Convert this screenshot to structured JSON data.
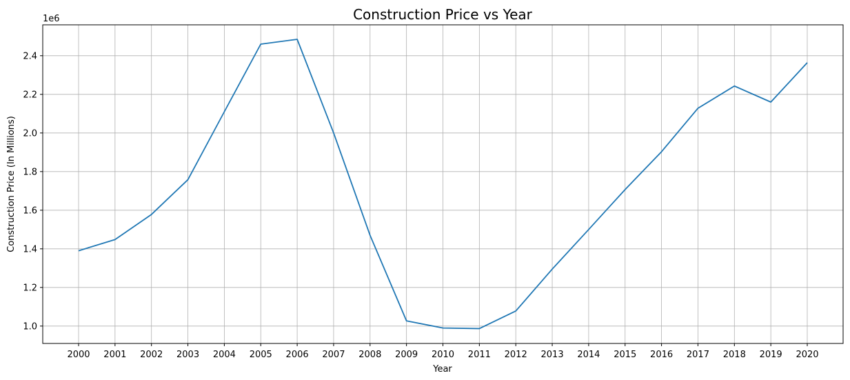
{
  "chart_data": {
    "type": "line",
    "title": "Construction Price vs Year",
    "xlabel": "Year",
    "ylabel": "Construction Price (In Millions)",
    "offset_text": "1e6",
    "grid": true,
    "line_color": "#1f77b4",
    "x": [
      "2000",
      "2001",
      "2002",
      "2003",
      "2004",
      "2005",
      "2006",
      "2007",
      "2008",
      "2009",
      "2010",
      "2011",
      "2012",
      "2013",
      "2014",
      "2015",
      "2016",
      "2017",
      "2018",
      "2019",
      "2020"
    ],
    "series": [
      {
        "values": [
          1390000,
          1448000,
          1578000,
          1758000,
          2110000,
          2460000,
          2485000,
          2000000,
          1470000,
          1027000,
          990000,
          987000,
          1078000,
          1295000,
          1500000,
          1707000,
          1903000,
          2128000,
          2243000,
          2160000,
          2364000
        ]
      }
    ],
    "yticks": [
      "1.0",
      "1.2",
      "1.4",
      "1.6",
      "1.8",
      "2.0",
      "2.2",
      "2.4"
    ],
    "ylim": [
      910000,
      2560000
    ]
  }
}
